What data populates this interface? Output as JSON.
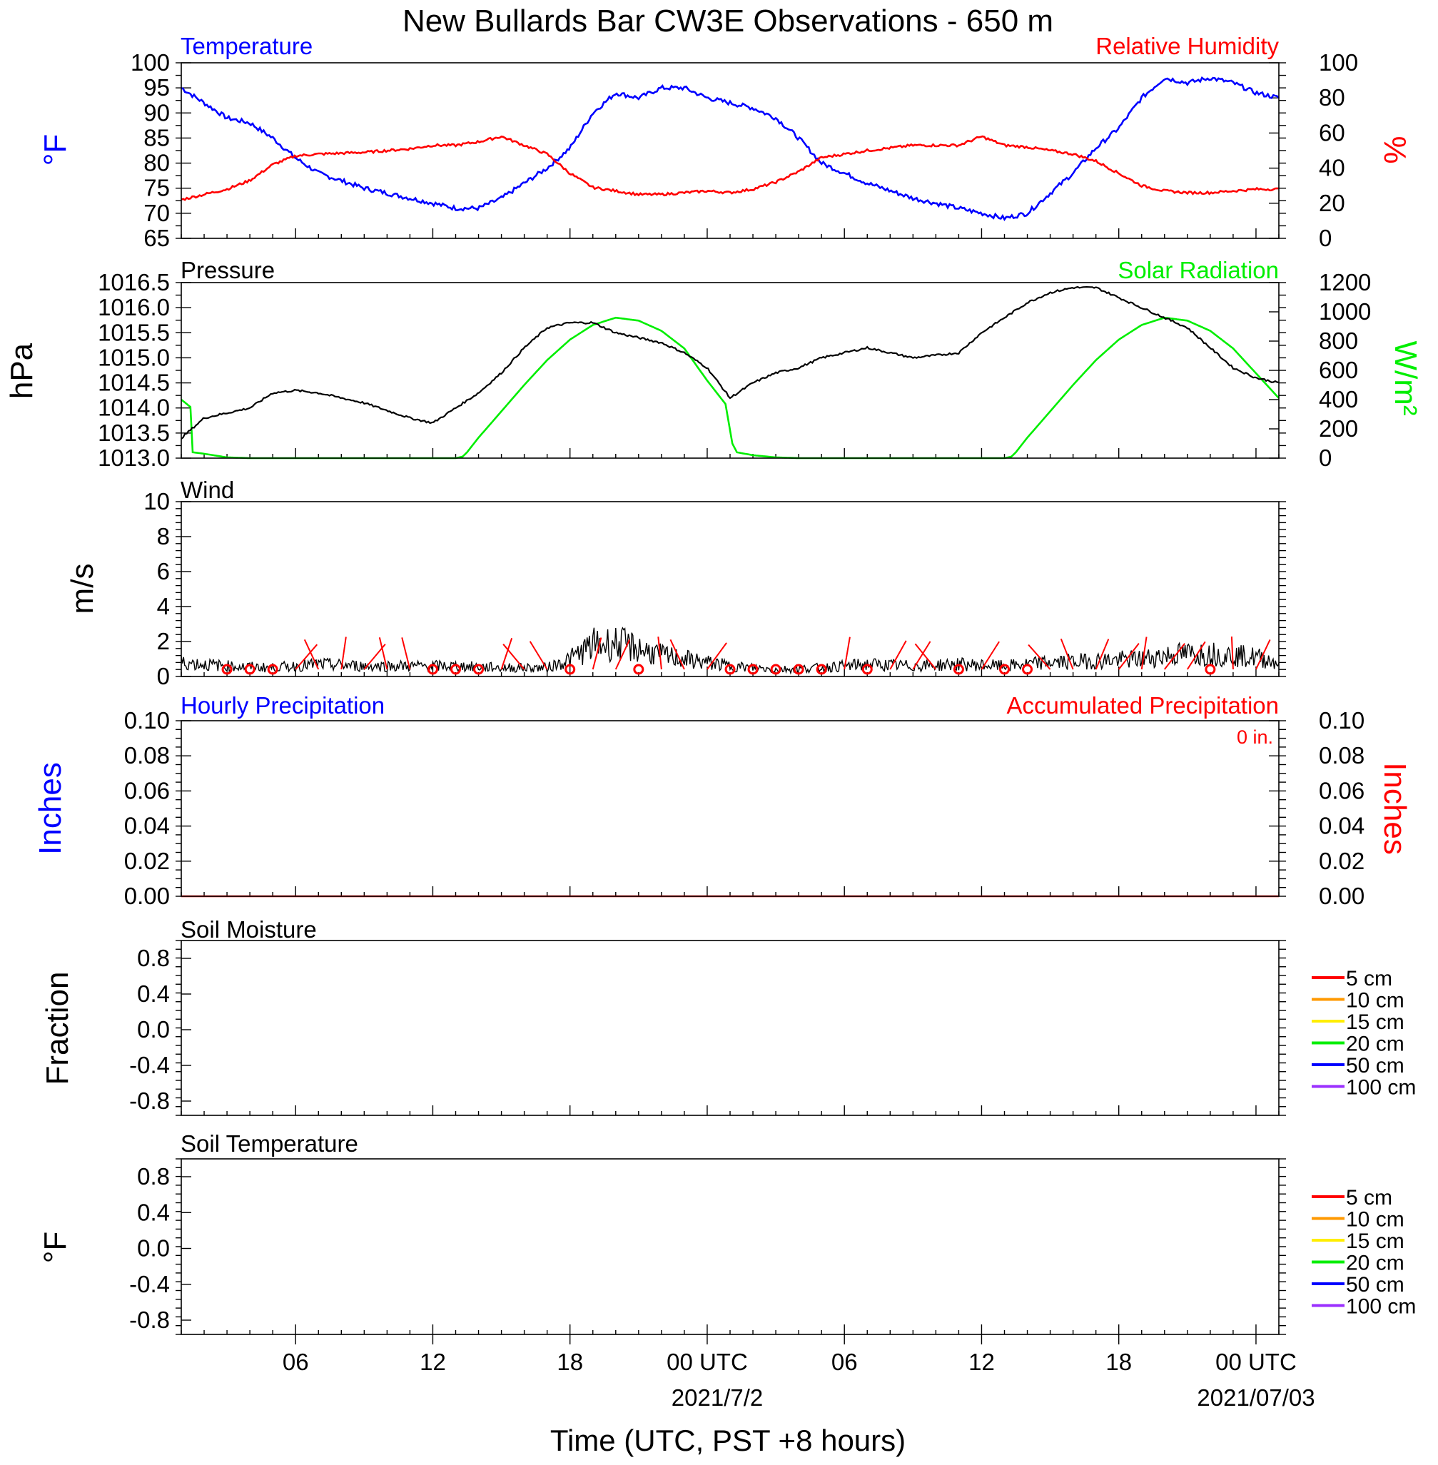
{
  "figure": {
    "title": "New Bullards Bar CW3E Observations - 650 m",
    "xlabel": "Time (UTC, PST +8 hours)",
    "x_ticks": [
      "06",
      "12",
      "18",
      "00 UTC",
      "06",
      "12",
      "18",
      "00 UTC"
    ],
    "date_labels": [
      "2021/7/2",
      "2021/07/03"
    ]
  },
  "colors": {
    "temperature": "#0000ff",
    "humidity": "#ff0000",
    "pressure": "#000000",
    "solar": "#00ee00",
    "wind": "#000000",
    "barbs": "#ff0000"
  },
  "panels": {
    "temp": {
      "title_left": "Temperature",
      "title_right": "Relative Humidity",
      "ylabel_left": "°F",
      "ylabel_right": "%",
      "left_ticks": [
        "100",
        "95",
        "90",
        "85",
        "80",
        "75",
        "70",
        "65"
      ],
      "right_ticks": [
        "100",
        "80",
        "60",
        "40",
        "20",
        "0"
      ]
    },
    "pressure": {
      "title_left": "Pressure",
      "title_right": "Solar Radiation",
      "ylabel_left": "hPa",
      "ylabel_right": "W/m²",
      "left_ticks": [
        "1016.5",
        "1016.0",
        "1015.5",
        "1015.0",
        "1014.5",
        "1014.0",
        "1013.5",
        "1013.0"
      ],
      "right_ticks": [
        "1200",
        "1000",
        "800",
        "600",
        "400",
        "200",
        "0"
      ]
    },
    "wind": {
      "title_left": "Wind",
      "ylabel_left": "m/s",
      "left_ticks": [
        "10",
        "8",
        "6",
        "4",
        "2",
        "0"
      ]
    },
    "precip": {
      "title_left": "Hourly Precipitation",
      "title_right": "Accumulated Precipitation",
      "accum_total": "0 in.",
      "ylabel_left": "Inches",
      "ylabel_right": "Inches",
      "left_ticks": [
        "0.10",
        "0.08",
        "0.06",
        "0.04",
        "0.02",
        "0.00"
      ],
      "right_ticks": [
        "0.10",
        "0.08",
        "0.06",
        "0.04",
        "0.02",
        "0.00"
      ]
    },
    "soil_moisture": {
      "title_left": "Soil Moisture",
      "ylabel_left": "Fraction",
      "left_ticks": [
        "0.8",
        "0.4",
        "0.0",
        "-0.4",
        "-0.8"
      ],
      "legend": [
        "5 cm",
        "10 cm",
        "15 cm",
        "20 cm",
        "50 cm",
        "100 cm"
      ]
    },
    "soil_temp": {
      "title_left": "Soil Temperature",
      "ylabel_left": "°F",
      "left_ticks": [
        "0.8",
        "0.4",
        "0.0",
        "-0.4",
        "-0.8"
      ],
      "legend": [
        "5 cm",
        "10 cm",
        "15 cm",
        "20 cm",
        "50 cm",
        "100 cm"
      ]
    }
  },
  "legend_colors": [
    "#ff0000",
    "#ff9900",
    "#ffee00",
    "#00ee00",
    "#0000ff",
    "#9b30ff"
  ],
  "chart_data": [
    {
      "type": "line",
      "title": "Temperature",
      "x_unit": "hours since 2021-07-01 01 UTC",
      "ylabel": "°F",
      "ylim": [
        65,
        100
      ],
      "series": [
        {
          "name": "Temperature",
          "x": [
            0,
            1,
            2,
            3,
            4,
            5,
            6,
            8,
            10,
            11,
            12,
            13,
            14,
            15,
            16,
            17,
            18,
            19,
            20,
            21,
            22,
            23,
            24,
            25,
            26,
            27,
            28,
            30,
            32,
            34,
            35,
            36,
            37,
            38,
            39,
            40,
            41,
            42,
            43,
            44,
            45,
            46,
            47,
            48
          ],
          "values": [
            95,
            92,
            89,
            88,
            85,
            81,
            78,
            75,
            73,
            72,
            71,
            71,
            73,
            76,
            79,
            83,
            90,
            94,
            93,
            95,
            95,
            93,
            92,
            91,
            89,
            85,
            80,
            76,
            73,
            71,
            70,
            69,
            70,
            74,
            78,
            83,
            87,
            93,
            97,
            96,
            97,
            96,
            94,
            93
          ]
        }
      ]
    },
    {
      "type": "line",
      "title": "Relative Humidity",
      "x_unit": "hours since 2021-07-01 01 UTC",
      "ylabel": "%",
      "ylim": [
        0,
        100
      ],
      "series": [
        {
          "name": "Relative Humidity",
          "x": [
            0,
            1,
            2,
            3,
            4,
            5,
            6,
            8,
            10,
            11,
            12,
            13,
            14,
            15,
            16,
            17,
            18,
            19,
            20,
            21,
            22,
            23,
            24,
            25,
            26,
            27,
            28,
            30,
            32,
            34,
            35,
            36,
            37,
            38,
            39,
            40,
            41,
            42,
            43,
            44,
            45,
            46,
            47,
            48
          ],
          "values": [
            22,
            25,
            28,
            33,
            42,
            47,
            48,
            49,
            51,
            53,
            53,
            55,
            58,
            53,
            48,
            37,
            29,
            27,
            25,
            25,
            26,
            27,
            26,
            28,
            32,
            38,
            46,
            50,
            53,
            53,
            58,
            53,
            52,
            50,
            48,
            44,
            37,
            30,
            27,
            26,
            26,
            27,
            28,
            28
          ]
        }
      ]
    },
    {
      "type": "line",
      "title": "Pressure",
      "x_unit": "hours since 2021-07-01 01 UTC",
      "ylabel": "hPa",
      "ylim": [
        1013.0,
        1016.5
      ],
      "series": [
        {
          "name": "Pressure",
          "x": [
            0,
            1,
            2,
            3,
            4,
            5,
            6,
            8,
            10,
            11,
            12,
            13,
            14,
            15,
            16,
            17,
            18,
            19,
            20,
            21,
            22,
            23,
            24,
            25,
            26,
            27,
            28,
            30,
            32,
            34,
            35,
            36,
            37,
            38,
            39,
            40,
            41,
            42,
            43,
            44,
            45,
            46,
            47,
            48
          ],
          "values": [
            1013.4,
            1013.8,
            1013.9,
            1014.0,
            1014.3,
            1014.35,
            1014.3,
            1014.1,
            1013.8,
            1013.7,
            1014.0,
            1014.3,
            1014.7,
            1015.2,
            1015.6,
            1015.7,
            1015.7,
            1015.5,
            1015.4,
            1015.3,
            1015.1,
            1014.8,
            1014.2,
            1014.5,
            1014.7,
            1014.8,
            1015.0,
            1015.2,
            1015.0,
            1015.1,
            1015.5,
            1015.8,
            1016.1,
            1016.3,
            1016.4,
            1016.4,
            1016.2,
            1016.0,
            1015.8,
            1015.6,
            1015.2,
            1014.8,
            1014.6,
            1014.5
          ]
        }
      ]
    },
    {
      "type": "line",
      "title": "Solar Radiation",
      "x_unit": "hours since 2021-07-01 01 UTC",
      "ylabel": "W/m²",
      "ylim": [
        0,
        1200
      ],
      "series": [
        {
          "name": "Solar Radiation",
          "x": [
            0,
            0.4,
            0.5,
            1,
            2,
            3,
            4,
            6,
            8,
            10,
            12,
            12.3,
            12.5,
            13,
            14,
            15,
            16,
            17,
            18,
            19,
            20,
            21,
            22,
            23,
            23.8,
            24.1,
            24.3,
            25,
            26,
            27,
            28,
            30,
            32,
            34,
            36,
            36.3,
            36.5,
            37,
            38,
            39,
            40,
            41,
            42,
            43,
            44,
            45,
            46,
            47,
            48
          ],
          "values": [
            400,
            350,
            40,
            30,
            5,
            0,
            0,
            0,
            0,
            0,
            0,
            10,
            40,
            140,
            320,
            500,
            670,
            810,
            910,
            960,
            940,
            870,
            750,
            530,
            370,
            100,
            40,
            20,
            5,
            0,
            0,
            0,
            0,
            0,
            0,
            10,
            40,
            140,
            320,
            500,
            670,
            810,
            910,
            960,
            940,
            870,
            750,
            580,
            410
          ]
        }
      ]
    },
    {
      "type": "line",
      "title": "Wind",
      "x_unit": "hours since 2021-07-01 01 UTC",
      "ylabel": "m/s",
      "ylim": [
        0,
        10
      ],
      "series": [
        {
          "name": "Wind speed",
          "x": [
            0,
            2,
            4,
            6,
            8,
            10,
            12,
            14,
            16,
            17,
            18,
            19,
            20,
            21,
            22,
            23,
            24,
            26,
            28,
            30,
            32,
            34,
            36,
            38,
            40,
            42,
            43,
            44,
            45,
            46,
            47,
            48
          ],
          "values": [
            0.8,
            0.6,
            0.5,
            0.7,
            0.6,
            0.6,
            0.6,
            0.5,
            0.5,
            1.0,
            1.8,
            1.9,
            1.6,
            1.2,
            1.0,
            0.8,
            0.6,
            0.4,
            0.5,
            0.7,
            0.6,
            0.7,
            0.6,
            0.8,
            0.9,
            1.0,
            1.2,
            1.3,
            1.3,
            1.2,
            1.1,
            0.8
          ]
        }
      ]
    },
    {
      "type": "line",
      "title": "Hourly Precipitation",
      "ylabel": "Inches",
      "ylim": [
        0,
        0.1
      ],
      "series": [
        {
          "name": "Hourly Precipitation",
          "x": [
            0,
            48
          ],
          "values": [
            0,
            0
          ]
        },
        {
          "name": "Accumulated Precipitation",
          "x": [
            0,
            48
          ],
          "values": [
            0,
            0
          ]
        }
      ]
    },
    {
      "type": "line",
      "title": "Soil Moisture",
      "ylabel": "Fraction",
      "ylim": [
        -1,
        1
      ],
      "series": []
    },
    {
      "type": "line",
      "title": "Soil Temperature",
      "ylabel": "°F",
      "ylim": [
        -1,
        1
      ],
      "series": []
    }
  ]
}
